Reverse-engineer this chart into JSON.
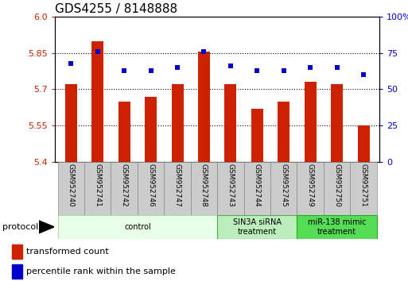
{
  "title": "GDS4255 / 8148888",
  "samples": [
    "GSM952740",
    "GSM952741",
    "GSM952742",
    "GSM952746",
    "GSM952747",
    "GSM952748",
    "GSM952743",
    "GSM952744",
    "GSM952745",
    "GSM952749",
    "GSM952750",
    "GSM952751"
  ],
  "transformed_count": [
    5.72,
    5.9,
    5.65,
    5.67,
    5.72,
    5.855,
    5.72,
    5.62,
    5.65,
    5.73,
    5.72,
    5.55
  ],
  "percentile_rank": [
    68,
    76,
    63,
    63,
    65,
    76,
    66,
    63,
    63,
    65,
    65,
    60
  ],
  "ylim": [
    5.4,
    6.0
  ],
  "yticks": [
    5.4,
    5.55,
    5.7,
    5.85,
    6.0
  ],
  "right_yticks": [
    0,
    25,
    50,
    75,
    100
  ],
  "bar_color": "#cc2200",
  "dot_color": "#0000cc",
  "grid_color": "#000000",
  "protocol_groups": [
    {
      "label": "control",
      "start": 0,
      "end": 6,
      "color": "#e8ffe8",
      "edge_color": "#aaddaa"
    },
    {
      "label": "SIN3A siRNA\ntreatment",
      "start": 6,
      "end": 9,
      "color": "#bbeebb",
      "edge_color": "#55aa55"
    },
    {
      "label": "miR-138 mimic\ntreatment",
      "start": 9,
      "end": 12,
      "color": "#55dd55",
      "edge_color": "#22aa22"
    }
  ],
  "title_fontsize": 11,
  "tick_fontsize": 8,
  "label_fontsize": 8,
  "bar_width": 0.45,
  "sample_box_color": "#cccccc",
  "sample_box_edge": "#888888"
}
